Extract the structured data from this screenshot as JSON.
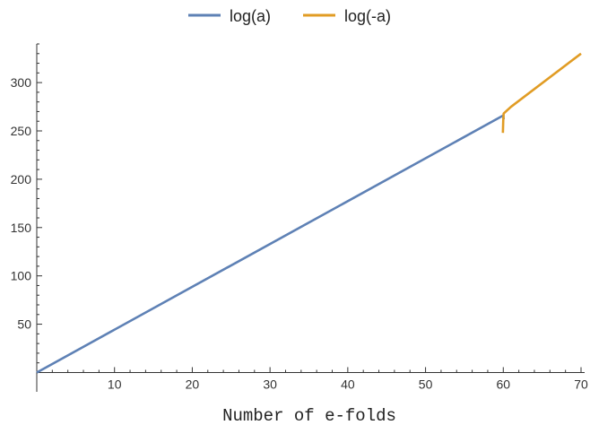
{
  "chart_data": {
    "type": "line",
    "title": "",
    "xlabel": "Number of e-folds",
    "ylabel": "",
    "xlim": [
      0,
      70
    ],
    "ylim": [
      -7,
      340
    ],
    "x_ticks": [
      10,
      20,
      30,
      40,
      50,
      60,
      70
    ],
    "y_ticks": [
      50,
      100,
      150,
      200,
      250,
      300
    ],
    "legend_position": "top-center",
    "series": [
      {
        "name": "log(a)",
        "color": "#5E81B5",
        "points": [
          [
            0,
            0
          ],
          [
            60,
            266
          ],
          [
            60.05,
            262
          ]
        ]
      },
      {
        "name": "log(-a)",
        "color": "#E19C24",
        "points": [
          [
            59.95,
            248
          ],
          [
            60.0,
            262
          ],
          [
            60.05,
            268
          ],
          [
            61,
            275
          ],
          [
            70,
            330
          ]
        ]
      }
    ]
  }
}
